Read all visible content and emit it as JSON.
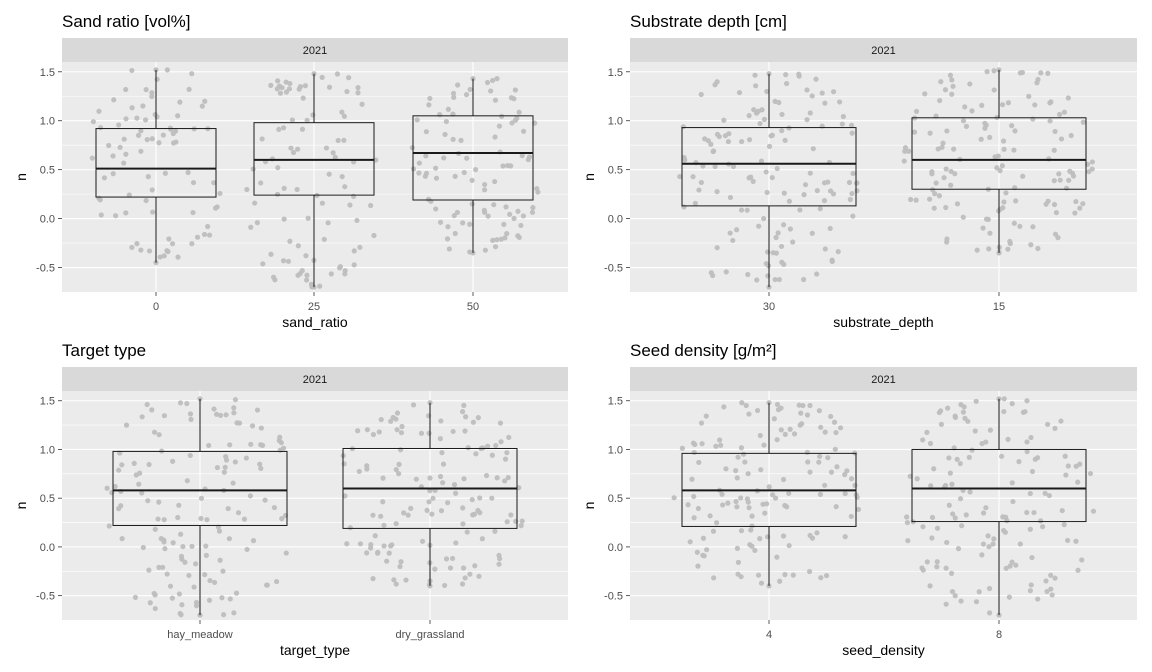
{
  "colors": {
    "panel_bg": "#EBEBEB",
    "strip_bg": "#D9D9D9",
    "grid": "#FFFFFF",
    "points": "#BEBEBE",
    "box": "#1A1A1A",
    "tick_text": "#4D4D4D"
  },
  "chart_data": [
    {
      "type": "boxplot",
      "title": "Sand ratio [vol%]",
      "facet": "2021",
      "xlabel": "sand_ratio",
      "ylabel": "n",
      "categories": [
        "0",
        "25",
        "50"
      ],
      "ylim": [
        -0.75,
        1.6
      ],
      "yticks": [
        -0.5,
        0.0,
        0.5,
        1.0,
        1.5
      ],
      "ytick_labels": [
        "-0.5",
        "0.0",
        "0.5",
        "1.0",
        "1.5"
      ],
      "boxes": [
        {
          "category": "0",
          "whisker_low": -0.45,
          "q1": 0.22,
          "median": 0.51,
          "q3": 0.92,
          "whisker_high": 1.52
        },
        {
          "category": "25",
          "whisker_low": -0.7,
          "q1": 0.24,
          "median": 0.6,
          "q3": 0.98,
          "whisker_high": 1.48
        },
        {
          "category": "50",
          "whisker_low": -0.35,
          "q1": 0.19,
          "median": 0.67,
          "q3": 1.05,
          "whisker_high": 1.43
        }
      ],
      "points_per_group": [
        85,
        95,
        100
      ]
    },
    {
      "type": "boxplot",
      "title": "Substrate depth [cm]",
      "facet": "2021",
      "xlabel": "substrate_depth",
      "ylabel": "n",
      "categories": [
        "30",
        "15"
      ],
      "ylim": [
        -0.75,
        1.6
      ],
      "yticks": [
        -0.5,
        0.0,
        0.5,
        1.0,
        1.5
      ],
      "ytick_labels": [
        "-0.5",
        "0.0",
        "0.5",
        "1.0",
        "1.5"
      ],
      "boxes": [
        {
          "category": "30",
          "whisker_low": -0.7,
          "q1": 0.13,
          "median": 0.56,
          "q3": 0.93,
          "whisker_high": 1.48
        },
        {
          "category": "15",
          "whisker_low": -0.35,
          "q1": 0.3,
          "median": 0.6,
          "q3": 1.03,
          "whisker_high": 1.52
        }
      ],
      "points_per_group": [
        140,
        140
      ]
    },
    {
      "type": "boxplot",
      "title": "Target type",
      "facet": "2021",
      "xlabel": "target_type",
      "ylabel": "n",
      "categories": [
        "hay_meadow",
        "dry_grassland"
      ],
      "ylim": [
        -0.75,
        1.6
      ],
      "yticks": [
        -0.5,
        0.0,
        0.5,
        1.0,
        1.5
      ],
      "ytick_labels": [
        "-0.5",
        "0.0",
        "0.5",
        "1.0",
        "1.5"
      ],
      "boxes": [
        {
          "category": "hay_meadow",
          "whisker_low": -0.7,
          "q1": 0.22,
          "median": 0.58,
          "q3": 0.98,
          "whisker_high": 1.52
        },
        {
          "category": "dry_grassland",
          "whisker_low": -0.4,
          "q1": 0.19,
          "median": 0.6,
          "q3": 1.01,
          "whisker_high": 1.48
        }
      ],
      "points_per_group": [
        140,
        140
      ]
    },
    {
      "type": "boxplot",
      "title": "Seed density [g/m²]",
      "facet": "2021",
      "xlabel": "seed_density",
      "ylabel": "n",
      "categories": [
        "4",
        "8"
      ],
      "ylim": [
        -0.75,
        1.6
      ],
      "yticks": [
        -0.5,
        0.0,
        0.5,
        1.0,
        1.5
      ],
      "ytick_labels": [
        "-0.5",
        "0.0",
        "0.5",
        "1.0",
        "1.5"
      ],
      "boxes": [
        {
          "category": "4",
          "whisker_low": -0.4,
          "q1": 0.21,
          "median": 0.58,
          "q3": 0.96,
          "whisker_high": 1.48
        },
        {
          "category": "8",
          "whisker_low": -0.7,
          "q1": 0.26,
          "median": 0.6,
          "q3": 1.0,
          "whisker_high": 1.52
        }
      ],
      "points_per_group": [
        140,
        140
      ]
    }
  ]
}
